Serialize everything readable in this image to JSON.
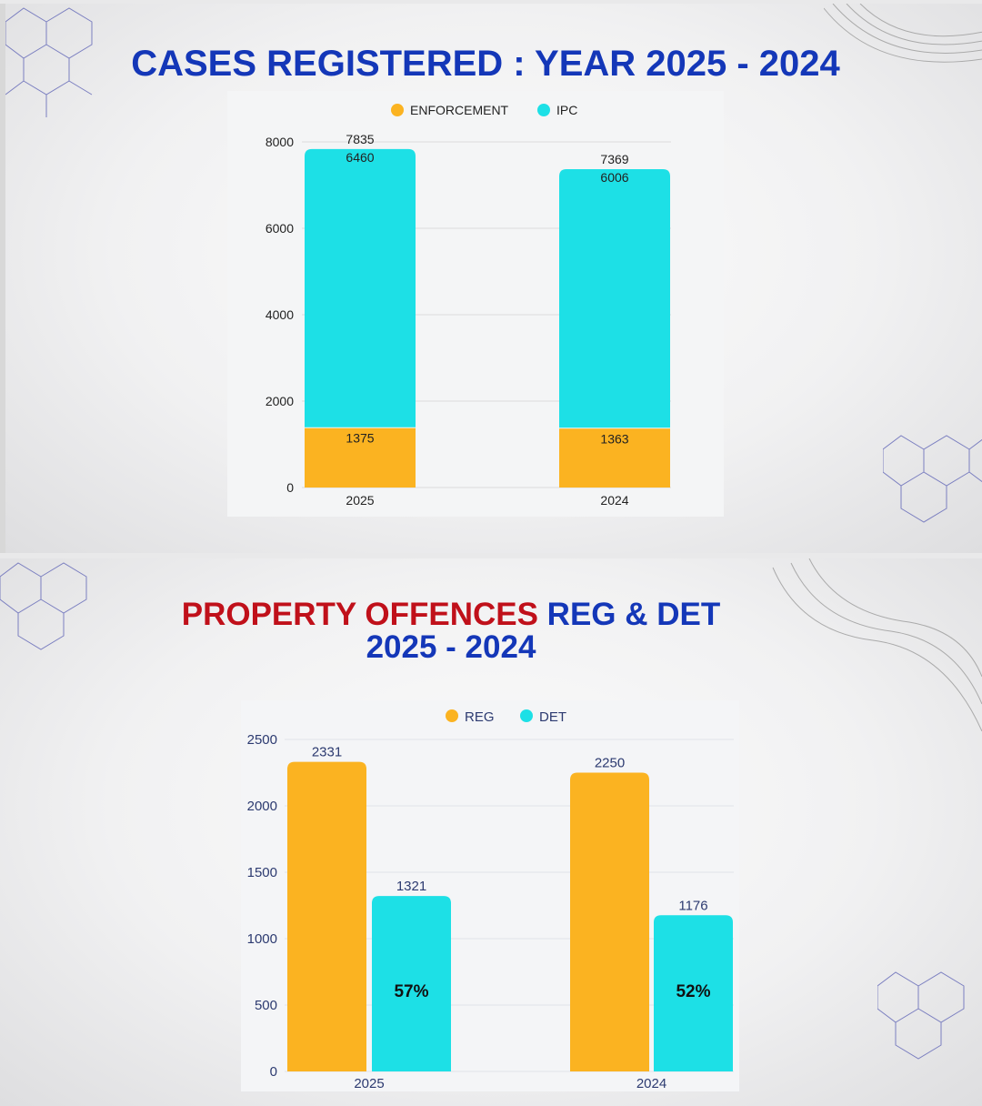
{
  "colors": {
    "orange": "#fbb321",
    "cyan": "#1de0e6",
    "title_blue": "#1437b8",
    "title_red": "#c0101a"
  },
  "panel1": {
    "title": "CASES REGISTERED : YEAR 2025 - 2024"
  },
  "panel2": {
    "title_red": "PROPERTY OFFENCES",
    "title_blue": "REG & DET",
    "title_line2": "2025 - 2024"
  },
  "chart_data": [
    {
      "type": "bar",
      "stacked": true,
      "title": "CASES REGISTERED : YEAR 2025 - 2024",
      "categories": [
        "2025",
        "2024"
      ],
      "series": [
        {
          "name": "ENFORCEMENT",
          "values": [
            1375,
            1363
          ]
        },
        {
          "name": "IPC",
          "values": [
            6460,
            6006
          ]
        }
      ],
      "totals": [
        7835,
        7369
      ],
      "yticks": [
        "0",
        "2000",
        "4000",
        "6000",
        "8000"
      ],
      "ylim": [
        0,
        8000
      ],
      "legend": "top",
      "grid": true
    },
    {
      "type": "bar",
      "stacked": false,
      "title": "PROPERTY OFFENCES REG & DET 2025 - 2024",
      "categories": [
        "2025",
        "2024"
      ],
      "series": [
        {
          "name": "REG",
          "values": [
            2331,
            2250
          ]
        },
        {
          "name": "DET",
          "values": [
            1321,
            1176
          ]
        }
      ],
      "det_percent": [
        "57%",
        "52%"
      ],
      "yticks": [
        "0",
        "500",
        "1000",
        "1500",
        "2000",
        "2500"
      ],
      "ylim": [
        0,
        2500
      ],
      "legend": "top",
      "grid": true
    }
  ]
}
